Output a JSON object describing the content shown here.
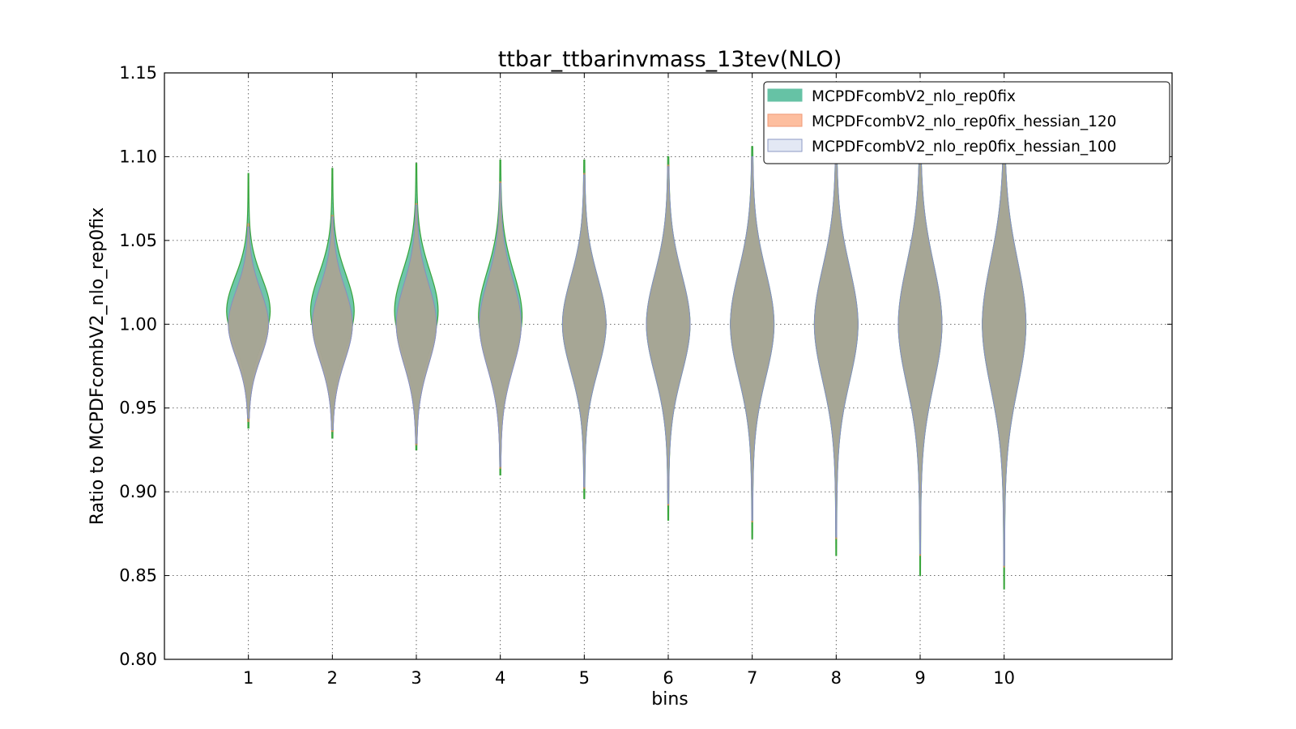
{
  "chart_data": {
    "type": "violin",
    "title": "ttbar_ttbarinvmass_13tev(NLO)",
    "xlabel": "bins",
    "ylabel": "Ratio to MCPDFcombV2_nlo_rep0fix",
    "ylim": [
      0.8,
      1.15
    ],
    "yticks": [
      "0.80",
      "0.85",
      "0.90",
      "0.95",
      "1.00",
      "1.05",
      "1.10",
      "1.15"
    ],
    "xlim": [
      0,
      12
    ],
    "categories": [
      "1",
      "2",
      "3",
      "4",
      "5",
      "6",
      "7",
      "8",
      "9",
      "10"
    ],
    "grid": true,
    "legend_position": "top-right",
    "series": [
      {
        "name": "MCPDFcombV2_nlo_rep0fix",
        "fill": "#66c2a5",
        "stroke": "#2ca02c",
        "min": [
          0.938,
          0.932,
          0.925,
          0.91,
          0.896,
          0.883,
          0.872,
          0.862,
          0.85,
          0.842
        ],
        "max": [
          1.09,
          1.093,
          1.096,
          1.098,
          1.098,
          1.1,
          1.106,
          1.112,
          1.118,
          1.122
        ],
        "center": [
          1.008,
          1.008,
          1.008,
          1.005,
          1.0,
          1.0,
          1.0,
          1.0,
          1.0,
          1.0
        ],
        "spread": [
          0.02,
          0.022,
          0.024,
          0.026,
          0.028,
          0.03,
          0.032,
          0.034,
          0.036,
          0.038
        ],
        "max_half_width": [
          0.26,
          0.26,
          0.26,
          0.26,
          0.26,
          0.26,
          0.26,
          0.26,
          0.26,
          0.26
        ]
      },
      {
        "name": "MCPDFcombV2_nlo_rep0fix_hessian_120",
        "fill": "#fc8d62",
        "stroke": "#e6855a",
        "min": [
          0.942,
          0.936,
          0.928,
          0.914,
          0.902,
          0.892,
          0.882,
          0.872,
          0.862,
          0.855
        ],
        "max": [
          1.06,
          1.065,
          1.072,
          1.085,
          1.09,
          1.095,
          1.1,
          1.108,
          1.114,
          1.118
        ],
        "center": [
          1.0,
          1.0,
          1.0,
          1.0,
          1.0,
          1.0,
          1.0,
          1.0,
          1.0,
          1.0
        ],
        "spread": [
          0.02,
          0.022,
          0.024,
          0.026,
          0.028,
          0.03,
          0.032,
          0.034,
          0.036,
          0.038
        ],
        "max_half_width": [
          0.24,
          0.24,
          0.24,
          0.25,
          0.26,
          0.26,
          0.26,
          0.26,
          0.26,
          0.26
        ]
      },
      {
        "name": "MCPDFcombV2_nlo_rep0fix_hessian_100",
        "fill": "#8da0cb",
        "stroke": "#7f8fc9",
        "min": [
          0.944,
          0.937,
          0.929,
          0.915,
          0.903,
          0.893,
          0.883,
          0.873,
          0.863,
          0.856
        ],
        "max": [
          1.058,
          1.064,
          1.071,
          1.084,
          1.089,
          1.094,
          1.1,
          1.107,
          1.113,
          1.117
        ],
        "center": [
          1.0,
          1.0,
          1.0,
          1.0,
          1.0,
          1.0,
          1.0,
          1.0,
          1.0,
          1.0
        ],
        "spread": [
          0.02,
          0.022,
          0.024,
          0.026,
          0.028,
          0.03,
          0.032,
          0.034,
          0.036,
          0.038
        ],
        "max_half_width": [
          0.24,
          0.24,
          0.24,
          0.25,
          0.26,
          0.26,
          0.26,
          0.26,
          0.26,
          0.26
        ]
      }
    ]
  },
  "legend": {
    "items": [
      {
        "label": "MCPDFcombV2_nlo_rep0fix",
        "fill": "#66c2a5",
        "stroke": "#66c2a5"
      },
      {
        "label": "MCPDFcombV2_nlo_rep0fix_hessian_120",
        "fill": "#fdbe9f",
        "stroke": "#f09a77"
      },
      {
        "label": "MCPDFcombV2_nlo_rep0fix_hessian_100",
        "fill": "#e3e8f4",
        "stroke": "#8d9ac4"
      }
    ]
  },
  "violin_overlap_color": "#a7a595"
}
